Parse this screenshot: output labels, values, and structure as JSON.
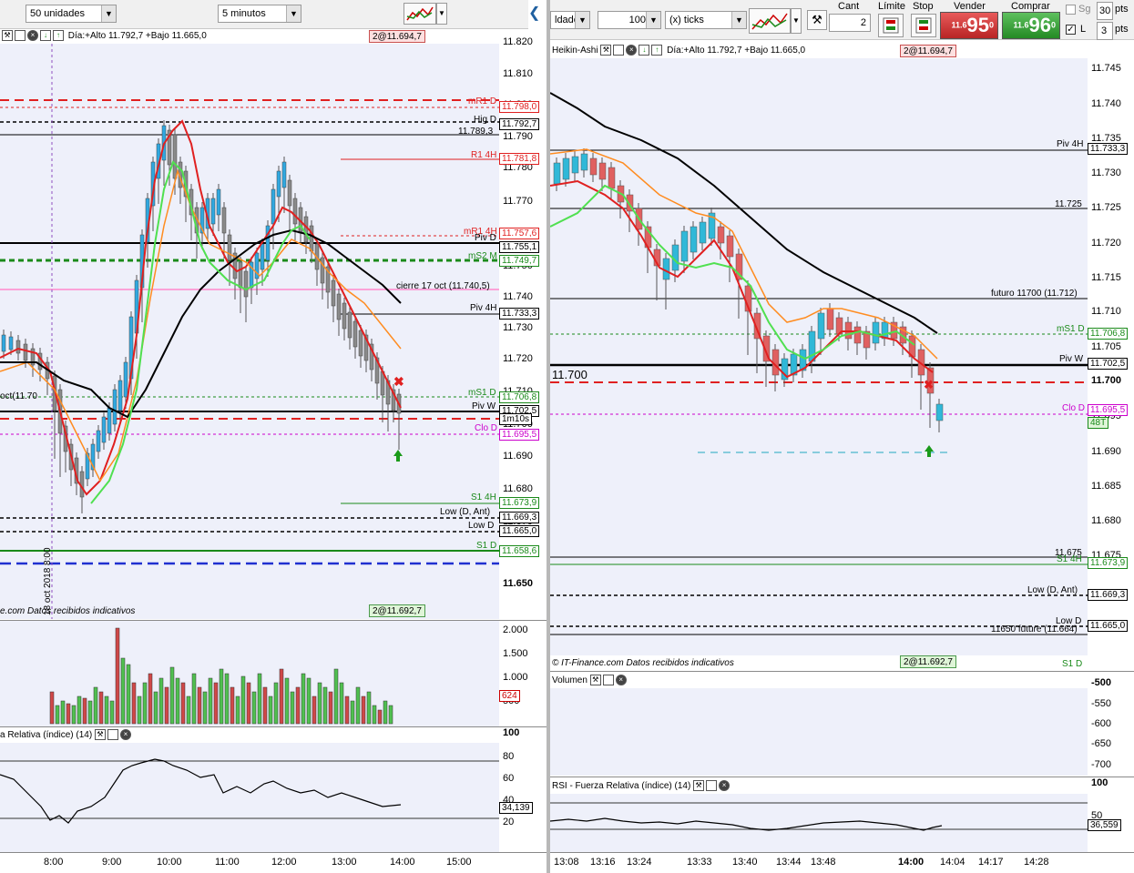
{
  "left": {
    "toolbar": {
      "units": "50 unidades",
      "timeframe": "5 minutos"
    },
    "header": {
      "range_text": "Día:+Alto 11.792,7 +Bajo 11.665,0",
      "order_badge": "2@11.694,7"
    },
    "footer": {
      "source_text": "e.com  Datos recibidos indicativos",
      "order_badge": "2@11.692,7"
    },
    "price_axis": [
      "11.820",
      "11.810",
      "11.800",
      "11.790",
      "11.780",
      "11.770",
      "11.760",
      "11.750",
      "11.740",
      "11.730",
      "11.720",
      "11.710",
      "11.700",
      "11.690",
      "11.680",
      "11.670",
      "11.660",
      "11.650"
    ],
    "level_tags": [
      {
        "text": "11.798,0",
        "color": "#e02020"
      },
      {
        "text": "11.792,7",
        "color": "#000000"
      },
      {
        "text": "11.781,8",
        "color": "#e02020"
      },
      {
        "text": "11.757,6",
        "color": "#e02020"
      },
      {
        "text": "11.755,1",
        "color": "#000000"
      },
      {
        "text": "11.749,7",
        "color": "#1a8a1a"
      },
      {
        "text": "11.733,3",
        "color": "#000000"
      },
      {
        "text": "11.706,8",
        "color": "#1a8a1a"
      },
      {
        "text": "11.702,5",
        "color": "#000000"
      },
      {
        "text": "1m10s",
        "color": "#000000"
      },
      {
        "text": "11.695,5",
        "color": "#cc00cc"
      },
      {
        "text": "11.673,9",
        "color": "#1a8a1a"
      },
      {
        "text": "11.669,3",
        "color": "#000000"
      },
      {
        "text": "11.665,0",
        "color": "#000000"
      },
      {
        "text": "11.658,6",
        "color": "#1a8a1a"
      }
    ],
    "level_labels": [
      {
        "text": "mR1 D",
        "color": "#e02020"
      },
      {
        "text": "Hig D",
        "color": "#000000"
      },
      {
        "text": "11.789,3",
        "color": "#000000"
      },
      {
        "text": "R1 4H",
        "color": "#e02020"
      },
      {
        "text": "mR1 4H",
        "color": "#e02020"
      },
      {
        "text": "Piv D",
        "color": "#000000"
      },
      {
        "text": "mS2 M",
        "color": "#1a8a1a"
      },
      {
        "text": "cierre 17 oct (11.740,5)",
        "color": "#000000"
      },
      {
        "text": "Piv 4H",
        "color": "#000000"
      },
      {
        "text": "mS1 D",
        "color": "#1a8a1a"
      },
      {
        "text": "Piv W",
        "color": "#000000"
      },
      {
        "text": "Clo D",
        "color": "#cc00cc"
      },
      {
        "text": "S1 4H",
        "color": "#1a8a1a"
      },
      {
        "text": "Low (D, Ant)",
        "color": "#000000"
      },
      {
        "text": "Low D",
        "color": "#000000"
      },
      {
        "text": "S1 D",
        "color": "#1a8a1a"
      },
      {
        "text": "oct(11.70",
        "color": "#000000"
      }
    ],
    "date_marker": "18 oct 2018 8:00",
    "time_axis": [
      "8:00",
      "9:00",
      "10:00",
      "11:00",
      "12:00",
      "13:00",
      "14:00",
      "15:00"
    ],
    "volume_axis": [
      "2.000",
      "1.500",
      "1.000",
      "500"
    ],
    "volume_tag": "624",
    "rsi_title": "a Relativa (índice) (14)",
    "rsi_axis": [
      "100",
      "80",
      "60",
      "40",
      "20"
    ],
    "rsi_tag": "34,139"
  },
  "right": {
    "toolbar": {
      "units_fragment": "ldades",
      "qty": "100",
      "ticks": "(x) ticks",
      "cant_label": "Cant",
      "cant_value": "2",
      "limite_label": "Límite",
      "stop_label": "Stop",
      "vender_label": "Vender",
      "comprar_label": "Comprar",
      "sell_price_small": "11.6",
      "sell_price_big": "95",
      "sell_price_sup": "0",
      "buy_price_small": "11.6",
      "buy_price_big": "96",
      "buy_price_sup": "0",
      "sg_label": "Sg",
      "sg_value": "30",
      "l_label": "L",
      "l_value": "3",
      "pts_label": "pts"
    },
    "header": {
      "chart_type": "Heikin-Ashi",
      "range_text": "Día:+Alto 11.792,7 +Bajo 11.665,0",
      "order_badge": "2@11.694,7"
    },
    "footer": {
      "source_text": "© IT-Finance.com  Datos recibidos indicativos",
      "order_badge": "2@11.692,7",
      "s1d": "S1 D"
    },
    "price_axis": [
      "11.745",
      "11.740",
      "11.735",
      "11.730",
      "11.725",
      "11.720",
      "11.715",
      "11.710",
      "11.705",
      "11.700",
      "11.695",
      "11.690",
      "11.685",
      "11.680",
      "11.675"
    ],
    "level_tags": [
      {
        "text": "11.733,3",
        "color": "#000000"
      },
      {
        "text": "11.706,8",
        "color": "#1a8a1a"
      },
      {
        "text": "11.702,5",
        "color": "#000000"
      },
      {
        "text": "11.695,5",
        "color": "#cc00cc"
      },
      {
        "text": "48T",
        "color": "#1a8a1a"
      },
      {
        "text": "11.673,9",
        "color": "#1a8a1a"
      },
      {
        "text": "11.669,3",
        "color": "#000000"
      },
      {
        "text": "11.665,0",
        "color": "#000000"
      }
    ],
    "level_labels": [
      {
        "text": "Piv 4H",
        "color": "#000000"
      },
      {
        "text": "11.725",
        "color": "#000000"
      },
      {
        "text": "futuro 11700 (11.712)",
        "color": "#000000"
      },
      {
        "text": "mS1 D",
        "color": "#1a8a1a"
      },
      {
        "text": "Piv W",
        "color": "#000000"
      },
      {
        "text": "Clo D",
        "color": "#cc00cc"
      },
      {
        "text": "11.675",
        "color": "#000000"
      },
      {
        "text": "S1 4H",
        "color": "#1a8a1a"
      },
      {
        "text": "Low (D, Ant)",
        "color": "#000000"
      },
      {
        "text": "Low D",
        "color": "#000000"
      },
      {
        "text": "11650 future (11.664)",
        "color": "#000000"
      }
    ],
    "bold_price": "11.700",
    "bold_price_axis": "11.700",
    "volume_title": "Volumen",
    "volume_axis": [
      "-500",
      "-550",
      "-600",
      "-650",
      "-700"
    ],
    "rsi_title": "RSI - Fuerza Relativa (índice) (14)",
    "rsi_axis": [
      "100",
      "50"
    ],
    "rsi_tag": "36,559",
    "time_axis": [
      "13:08",
      "13:16",
      "13:24",
      "13:33",
      "13:40",
      "13:44",
      "13:48",
      "14:00",
      "14:04",
      "14:17",
      "14:28"
    ]
  }
}
